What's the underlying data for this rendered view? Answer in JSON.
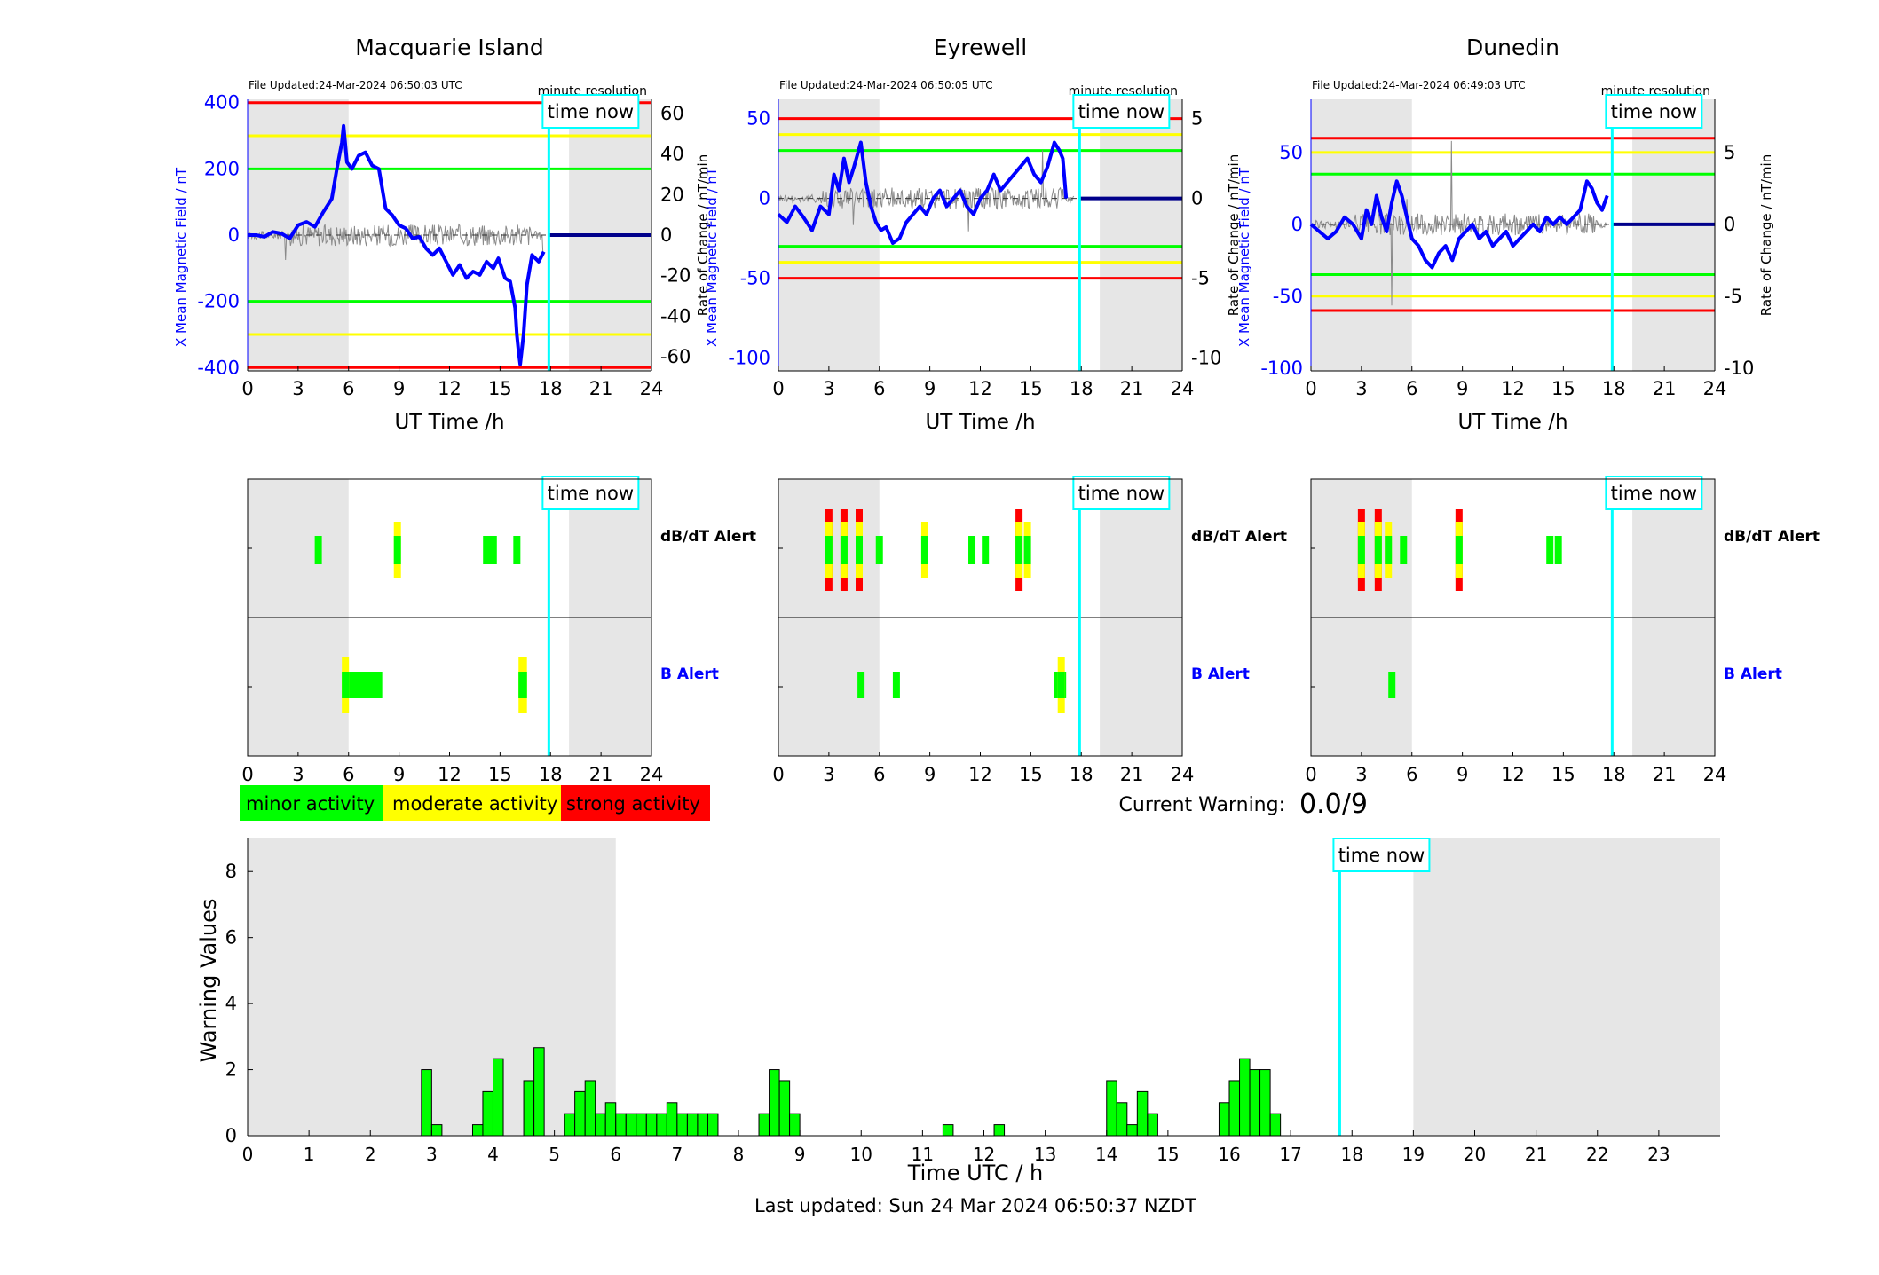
{
  "labels": {
    "time_now": "time now",
    "minute_resolution": "minute resolution",
    "x_axis": "UT Time /h",
    "y_left": "X Mean Magnetic Field / nT",
    "y_right": "Rate of Change / nT/min",
    "dbdt_alert": "dB/dT Alert",
    "b_alert": "B Alert",
    "legend": [
      "minor activity",
      "moderate activity",
      "strong activity"
    ],
    "current_warning_label": "Current Warning:",
    "current_warning_value": "0.0/9",
    "bottom_ylabel": "Warning Values",
    "bottom_xlabel": "Time UTC / h",
    "last_updated": "Last updated: Sun 24 Mar 2024 06:50:37 NZDT"
  },
  "colors": {
    "minor": "#00ff00",
    "moderate": "#ffff00",
    "strong": "#ff0000",
    "field_line": "#0000ff",
    "now_line": "#00ffff",
    "shade": "#e6e6e6"
  },
  "stations": [
    {
      "name": "Macquarie Island",
      "file_updated": "File Updated:24-Mar-2024 06:50:03 UTC",
      "ylim": [
        -410,
        410
      ],
      "yticks": [
        -400,
        -200,
        0,
        200,
        400
      ],
      "rlim": [
        -67,
        67
      ],
      "rticks": [
        -60,
        -40,
        -20,
        0,
        20,
        40,
        60
      ],
      "thresholds": {
        "red": 400,
        "yellow": 300,
        "green": 200
      },
      "now_hour": 17.9,
      "shade": [
        [
          0,
          6
        ],
        [
          19.1,
          24
        ]
      ],
      "field": [
        [
          0,
          0
        ],
        [
          0.5,
          0
        ],
        [
          1,
          -5
        ],
        [
          1.5,
          10
        ],
        [
          2,
          5
        ],
        [
          2.5,
          -10
        ],
        [
          3,
          30
        ],
        [
          3.5,
          40
        ],
        [
          4,
          25
        ],
        [
          4.5,
          70
        ],
        [
          5,
          110
        ],
        [
          5.3,
          200
        ],
        [
          5.6,
          280
        ],
        [
          5.7,
          330
        ],
        [
          5.9,
          220
        ],
        [
          6.2,
          200
        ],
        [
          6.6,
          240
        ],
        [
          7,
          250
        ],
        [
          7.4,
          210
        ],
        [
          7.8,
          200
        ],
        [
          8.2,
          80
        ],
        [
          8.6,
          60
        ],
        [
          9,
          30
        ],
        [
          9.4,
          20
        ],
        [
          9.8,
          -10
        ],
        [
          10.2,
          -5
        ],
        [
          10.6,
          -40
        ],
        [
          11,
          -60
        ],
        [
          11.4,
          -40
        ],
        [
          11.8,
          -80
        ],
        [
          12.2,
          -120
        ],
        [
          12.6,
          -90
        ],
        [
          13,
          -130
        ],
        [
          13.4,
          -110
        ],
        [
          13.8,
          -120
        ],
        [
          14.2,
          -80
        ],
        [
          14.6,
          -100
        ],
        [
          14.9,
          -70
        ],
        [
          15.3,
          -130
        ],
        [
          15.6,
          -140
        ],
        [
          15.9,
          -220
        ],
        [
          16,
          -300
        ],
        [
          16.1,
          -350
        ],
        [
          16.2,
          -390
        ],
        [
          16.4,
          -300
        ],
        [
          16.6,
          -150
        ],
        [
          16.9,
          -60
        ],
        [
          17.3,
          -80
        ],
        [
          17.6,
          -50
        ]
      ],
      "dbdt": [
        [
          4.2,
          "minor"
        ],
        [
          8.9,
          "moderate"
        ],
        [
          14.2,
          "minor"
        ],
        [
          14.6,
          "minor"
        ],
        [
          16,
          "minor"
        ]
      ],
      "balert": [
        [
          5.6,
          8,
          "minor"
        ],
        [
          5.6,
          5.9,
          "moderate"
        ],
        [
          16.1,
          16.6,
          "minor"
        ],
        [
          16.1,
          16.6,
          "moderate"
        ]
      ]
    },
    {
      "name": "Eyrewell",
      "file_updated": "File Updated:24-Mar-2024 06:50:05 UTC",
      "ylim": [
        -108,
        62
      ],
      "yticks": [
        -100,
        -50,
        0,
        50
      ],
      "rlim": [
        -10.8,
        6.2
      ],
      "rticks": [
        -10,
        -5,
        0,
        5
      ],
      "thresholds": {
        "red": 50,
        "yellow": 40,
        "green": 30
      },
      "now_hour": 17.9,
      "shade": [
        [
          0,
          6
        ],
        [
          19.1,
          24
        ]
      ],
      "field": [
        [
          0,
          -10
        ],
        [
          0.5,
          -15
        ],
        [
          1,
          -5
        ],
        [
          1.5,
          -12
        ],
        [
          2,
          -20
        ],
        [
          2.5,
          -5
        ],
        [
          3,
          -10
        ],
        [
          3.3,
          15
        ],
        [
          3.6,
          5
        ],
        [
          3.9,
          25
        ],
        [
          4.2,
          10
        ],
        [
          4.5,
          20
        ],
        [
          4.9,
          35
        ],
        [
          5.2,
          10
        ],
        [
          5.5,
          -5
        ],
        [
          5.8,
          -15
        ],
        [
          6.1,
          -20
        ],
        [
          6.4,
          -18
        ],
        [
          6.8,
          -28
        ],
        [
          7.2,
          -25
        ],
        [
          7.6,
          -15
        ],
        [
          8,
          -10
        ],
        [
          8.4,
          -5
        ],
        [
          8.8,
          -10
        ],
        [
          9.2,
          0
        ],
        [
          9.6,
          5
        ],
        [
          10,
          -5
        ],
        [
          10.4,
          0
        ],
        [
          10.8,
          5
        ],
        [
          11.2,
          -5
        ],
        [
          11.6,
          -10
        ],
        [
          12,
          0
        ],
        [
          12.4,
          5
        ],
        [
          12.8,
          15
        ],
        [
          13.2,
          5
        ],
        [
          13.6,
          10
        ],
        [
          14,
          15
        ],
        [
          14.4,
          20
        ],
        [
          14.8,
          25
        ],
        [
          15.2,
          15
        ],
        [
          15.6,
          10
        ],
        [
          16,
          20
        ],
        [
          16.4,
          35
        ],
        [
          16.7,
          30
        ],
        [
          16.9,
          25
        ],
        [
          17.1,
          0
        ]
      ],
      "dbdt": [
        [
          3,
          "strong"
        ],
        [
          3.9,
          "strong"
        ],
        [
          4.8,
          "strong"
        ],
        [
          6,
          "minor"
        ],
        [
          8.7,
          "moderate"
        ],
        [
          11.5,
          "minor"
        ],
        [
          12.3,
          "minor"
        ],
        [
          14.3,
          "strong"
        ],
        [
          14.8,
          "moderate"
        ]
      ],
      "balert": [
        [
          4.7,
          5,
          "minor"
        ],
        [
          6.8,
          7.1,
          "minor"
        ],
        [
          16.4,
          17.1,
          "minor"
        ],
        [
          16.6,
          16.9,
          "moderate"
        ]
      ]
    },
    {
      "name": "Dunedin",
      "file_updated": "File Updated:24-Mar-2024 06:49:03 UTC",
      "ylim": [
        -102,
        87
      ],
      "yticks": [
        -100,
        -50,
        0,
        50
      ],
      "rlim": [
        -10.2,
        8.7
      ],
      "rticks": [
        -10,
        -5,
        0,
        5
      ],
      "thresholds": {
        "red": 60,
        "yellow": 50,
        "green": 35
      },
      "now_hour": 17.9,
      "shade": [
        [
          0,
          6
        ],
        [
          19.1,
          24
        ]
      ],
      "field": [
        [
          0,
          0
        ],
        [
          0.5,
          -5
        ],
        [
          1,
          -10
        ],
        [
          1.5,
          -5
        ],
        [
          2,
          5
        ],
        [
          2.5,
          0
        ],
        [
          3,
          -10
        ],
        [
          3.3,
          10
        ],
        [
          3.6,
          0
        ],
        [
          3.9,
          20
        ],
        [
          4.2,
          5
        ],
        [
          4.5,
          -5
        ],
        [
          4.8,
          15
        ],
        [
          5.1,
          30
        ],
        [
          5.4,
          20
        ],
        [
          5.7,
          5
        ],
        [
          6,
          -10
        ],
        [
          6.4,
          -15
        ],
        [
          6.8,
          -25
        ],
        [
          7.2,
          -30
        ],
        [
          7.6,
          -20
        ],
        [
          8,
          -15
        ],
        [
          8.4,
          -25
        ],
        [
          8.8,
          -10
        ],
        [
          9.2,
          -5
        ],
        [
          9.6,
          0
        ],
        [
          10,
          -10
        ],
        [
          10.4,
          -5
        ],
        [
          10.8,
          -15
        ],
        [
          11.2,
          -10
        ],
        [
          11.6,
          -5
        ],
        [
          12,
          -15
        ],
        [
          12.4,
          -10
        ],
        [
          12.8,
          -5
        ],
        [
          13.2,
          0
        ],
        [
          13.6,
          -5
        ],
        [
          14,
          5
        ],
        [
          14.4,
          0
        ],
        [
          14.8,
          5
        ],
        [
          15.2,
          0
        ],
        [
          15.6,
          5
        ],
        [
          16,
          10
        ],
        [
          16.4,
          30
        ],
        [
          16.7,
          25
        ],
        [
          17,
          15
        ],
        [
          17.3,
          10
        ],
        [
          17.6,
          20
        ]
      ],
      "dbdt": [
        [
          3,
          "strong"
        ],
        [
          4,
          "strong"
        ],
        [
          4.6,
          "moderate"
        ],
        [
          5.5,
          "minor"
        ],
        [
          8.8,
          "strong"
        ],
        [
          14.2,
          "minor"
        ],
        [
          14.7,
          "minor"
        ]
      ],
      "balert": [
        [
          4.6,
          4.9,
          "minor"
        ]
      ]
    }
  ],
  "chart_data": {
    "type": "bar",
    "xlabel": "Time UTC / h",
    "ylabel": "Warning Values",
    "xlim": [
      0,
      24
    ],
    "ylim": [
      0,
      9
    ],
    "xticks": [
      0,
      1,
      2,
      3,
      4,
      5,
      6,
      7,
      8,
      9,
      10,
      11,
      12,
      13,
      14,
      15,
      16,
      17,
      18,
      19,
      20,
      21,
      22,
      23
    ],
    "yticks": [
      0,
      2,
      4,
      6,
      8
    ],
    "now_hour": 17.8,
    "shade": [
      [
        0,
        6
      ],
      [
        19,
        24
      ]
    ],
    "bin_width": 0.1667,
    "bars": [
      [
        2.833,
        2
      ],
      [
        3,
        0.333
      ],
      [
        3.667,
        0.333
      ],
      [
        3.833,
        1.333
      ],
      [
        4,
        2.333
      ],
      [
        4.5,
        1.667
      ],
      [
        4.667,
        2.667
      ],
      [
        5.167,
        0.667
      ],
      [
        5.333,
        1.333
      ],
      [
        5.5,
        1.667
      ],
      [
        5.667,
        0.667
      ],
      [
        5.833,
        1
      ],
      [
        6,
        0.667
      ],
      [
        6.167,
        0.667
      ],
      [
        6.333,
        0.667
      ],
      [
        6.5,
        0.667
      ],
      [
        6.667,
        0.667
      ],
      [
        6.833,
        1
      ],
      [
        7,
        0.667
      ],
      [
        7.167,
        0.667
      ],
      [
        7.333,
        0.667
      ],
      [
        7.5,
        0.667
      ],
      [
        8.333,
        0.667
      ],
      [
        8.5,
        2
      ],
      [
        8.667,
        1.667
      ],
      [
        8.833,
        0.667
      ],
      [
        11.333,
        0.333
      ],
      [
        12.167,
        0.333
      ],
      [
        14,
        1.667
      ],
      [
        14.167,
        1
      ],
      [
        14.333,
        0.333
      ],
      [
        14.5,
        1.333
      ],
      [
        14.667,
        0.667
      ],
      [
        15.833,
        1
      ],
      [
        16,
        1.667
      ],
      [
        16.167,
        2.333
      ],
      [
        16.333,
        2
      ],
      [
        16.5,
        2
      ],
      [
        16.667,
        0.667
      ]
    ]
  }
}
